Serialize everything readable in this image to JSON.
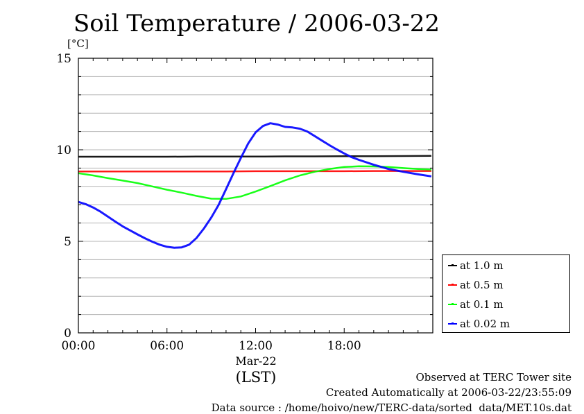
{
  "chart_data": {
    "type": "line",
    "title": "Soil Temperature / 2006-03-22",
    "ylabel": "[°C]",
    "xlabel": "(LST)",
    "date_label": "Mar-22",
    "ylim": [
      0,
      15
    ],
    "yticks": [
      0,
      5,
      10,
      15
    ],
    "xlim": [
      0,
      24
    ],
    "xticks": [
      0,
      6,
      12,
      18
    ],
    "xtick_labels": [
      "00:00",
      "06:00",
      "12:00",
      "18:00"
    ],
    "grid": true,
    "legend_position": "right",
    "series": [
      {
        "name": "at 1.0 m",
        "color": "#000000",
        "x": [
          0,
          2,
          4,
          6,
          8,
          10,
          12,
          14,
          16,
          18,
          20,
          22,
          23.9
        ],
        "y": [
          9.62,
          9.62,
          9.62,
          9.62,
          9.63,
          9.63,
          9.63,
          9.64,
          9.64,
          9.65,
          9.65,
          9.66,
          9.67
        ]
      },
      {
        "name": "at 0.5 m",
        "color": "#ff0000",
        "x": [
          0,
          2,
          4,
          6,
          8,
          10,
          12,
          14,
          16,
          18,
          20,
          22,
          23.9
        ],
        "y": [
          8.82,
          8.82,
          8.82,
          8.82,
          8.82,
          8.82,
          8.83,
          8.83,
          8.83,
          8.83,
          8.84,
          8.84,
          8.84
        ]
      },
      {
        "name": "at 0.1 m",
        "color": "#00ff00",
        "x": [
          0,
          1,
          2,
          3,
          4,
          5,
          6,
          7,
          8,
          9,
          10,
          11,
          12,
          13,
          14,
          15,
          16,
          17,
          18,
          19,
          20,
          21,
          22,
          23,
          23.9
        ],
        "y": [
          8.72,
          8.6,
          8.45,
          8.32,
          8.18,
          8.0,
          7.82,
          7.66,
          7.48,
          7.33,
          7.32,
          7.45,
          7.72,
          8.02,
          8.33,
          8.6,
          8.8,
          8.95,
          9.06,
          9.1,
          9.09,
          9.06,
          9.0,
          8.95,
          8.92
        ]
      },
      {
        "name": "at 0.02 m",
        "color": "#0000ff",
        "x": [
          0,
          0.5,
          1,
          1.5,
          2,
          2.5,
          3,
          3.5,
          4,
          4.5,
          5,
          5.5,
          6,
          6.5,
          7,
          7.5,
          8,
          8.5,
          9,
          9.5,
          10,
          10.5,
          11,
          11.5,
          12,
          12.5,
          13,
          13.5,
          14,
          14.5,
          15,
          15.5,
          16,
          16.5,
          17,
          17.5,
          18,
          18.5,
          19,
          20,
          21,
          22,
          23,
          23.9
        ],
        "y": [
          7.15,
          7.03,
          6.85,
          6.62,
          6.35,
          6.08,
          5.82,
          5.6,
          5.38,
          5.17,
          4.98,
          4.82,
          4.7,
          4.65,
          4.67,
          4.82,
          5.18,
          5.7,
          6.3,
          7.0,
          7.85,
          8.72,
          9.55,
          10.35,
          10.95,
          11.3,
          11.45,
          11.38,
          11.25,
          11.22,
          11.15,
          11.0,
          10.75,
          10.5,
          10.25,
          10.02,
          9.8,
          9.6,
          9.45,
          9.18,
          8.95,
          8.8,
          8.66,
          8.55
        ]
      }
    ]
  },
  "footer": {
    "line1": "Observed at TERC Tower site",
    "line2": "Created Automatically at 2006-03-22/23:55:09",
    "line3": "Data source : /home/hoivo/new/TERC-data/sorted  data/MET.10s.dat"
  }
}
